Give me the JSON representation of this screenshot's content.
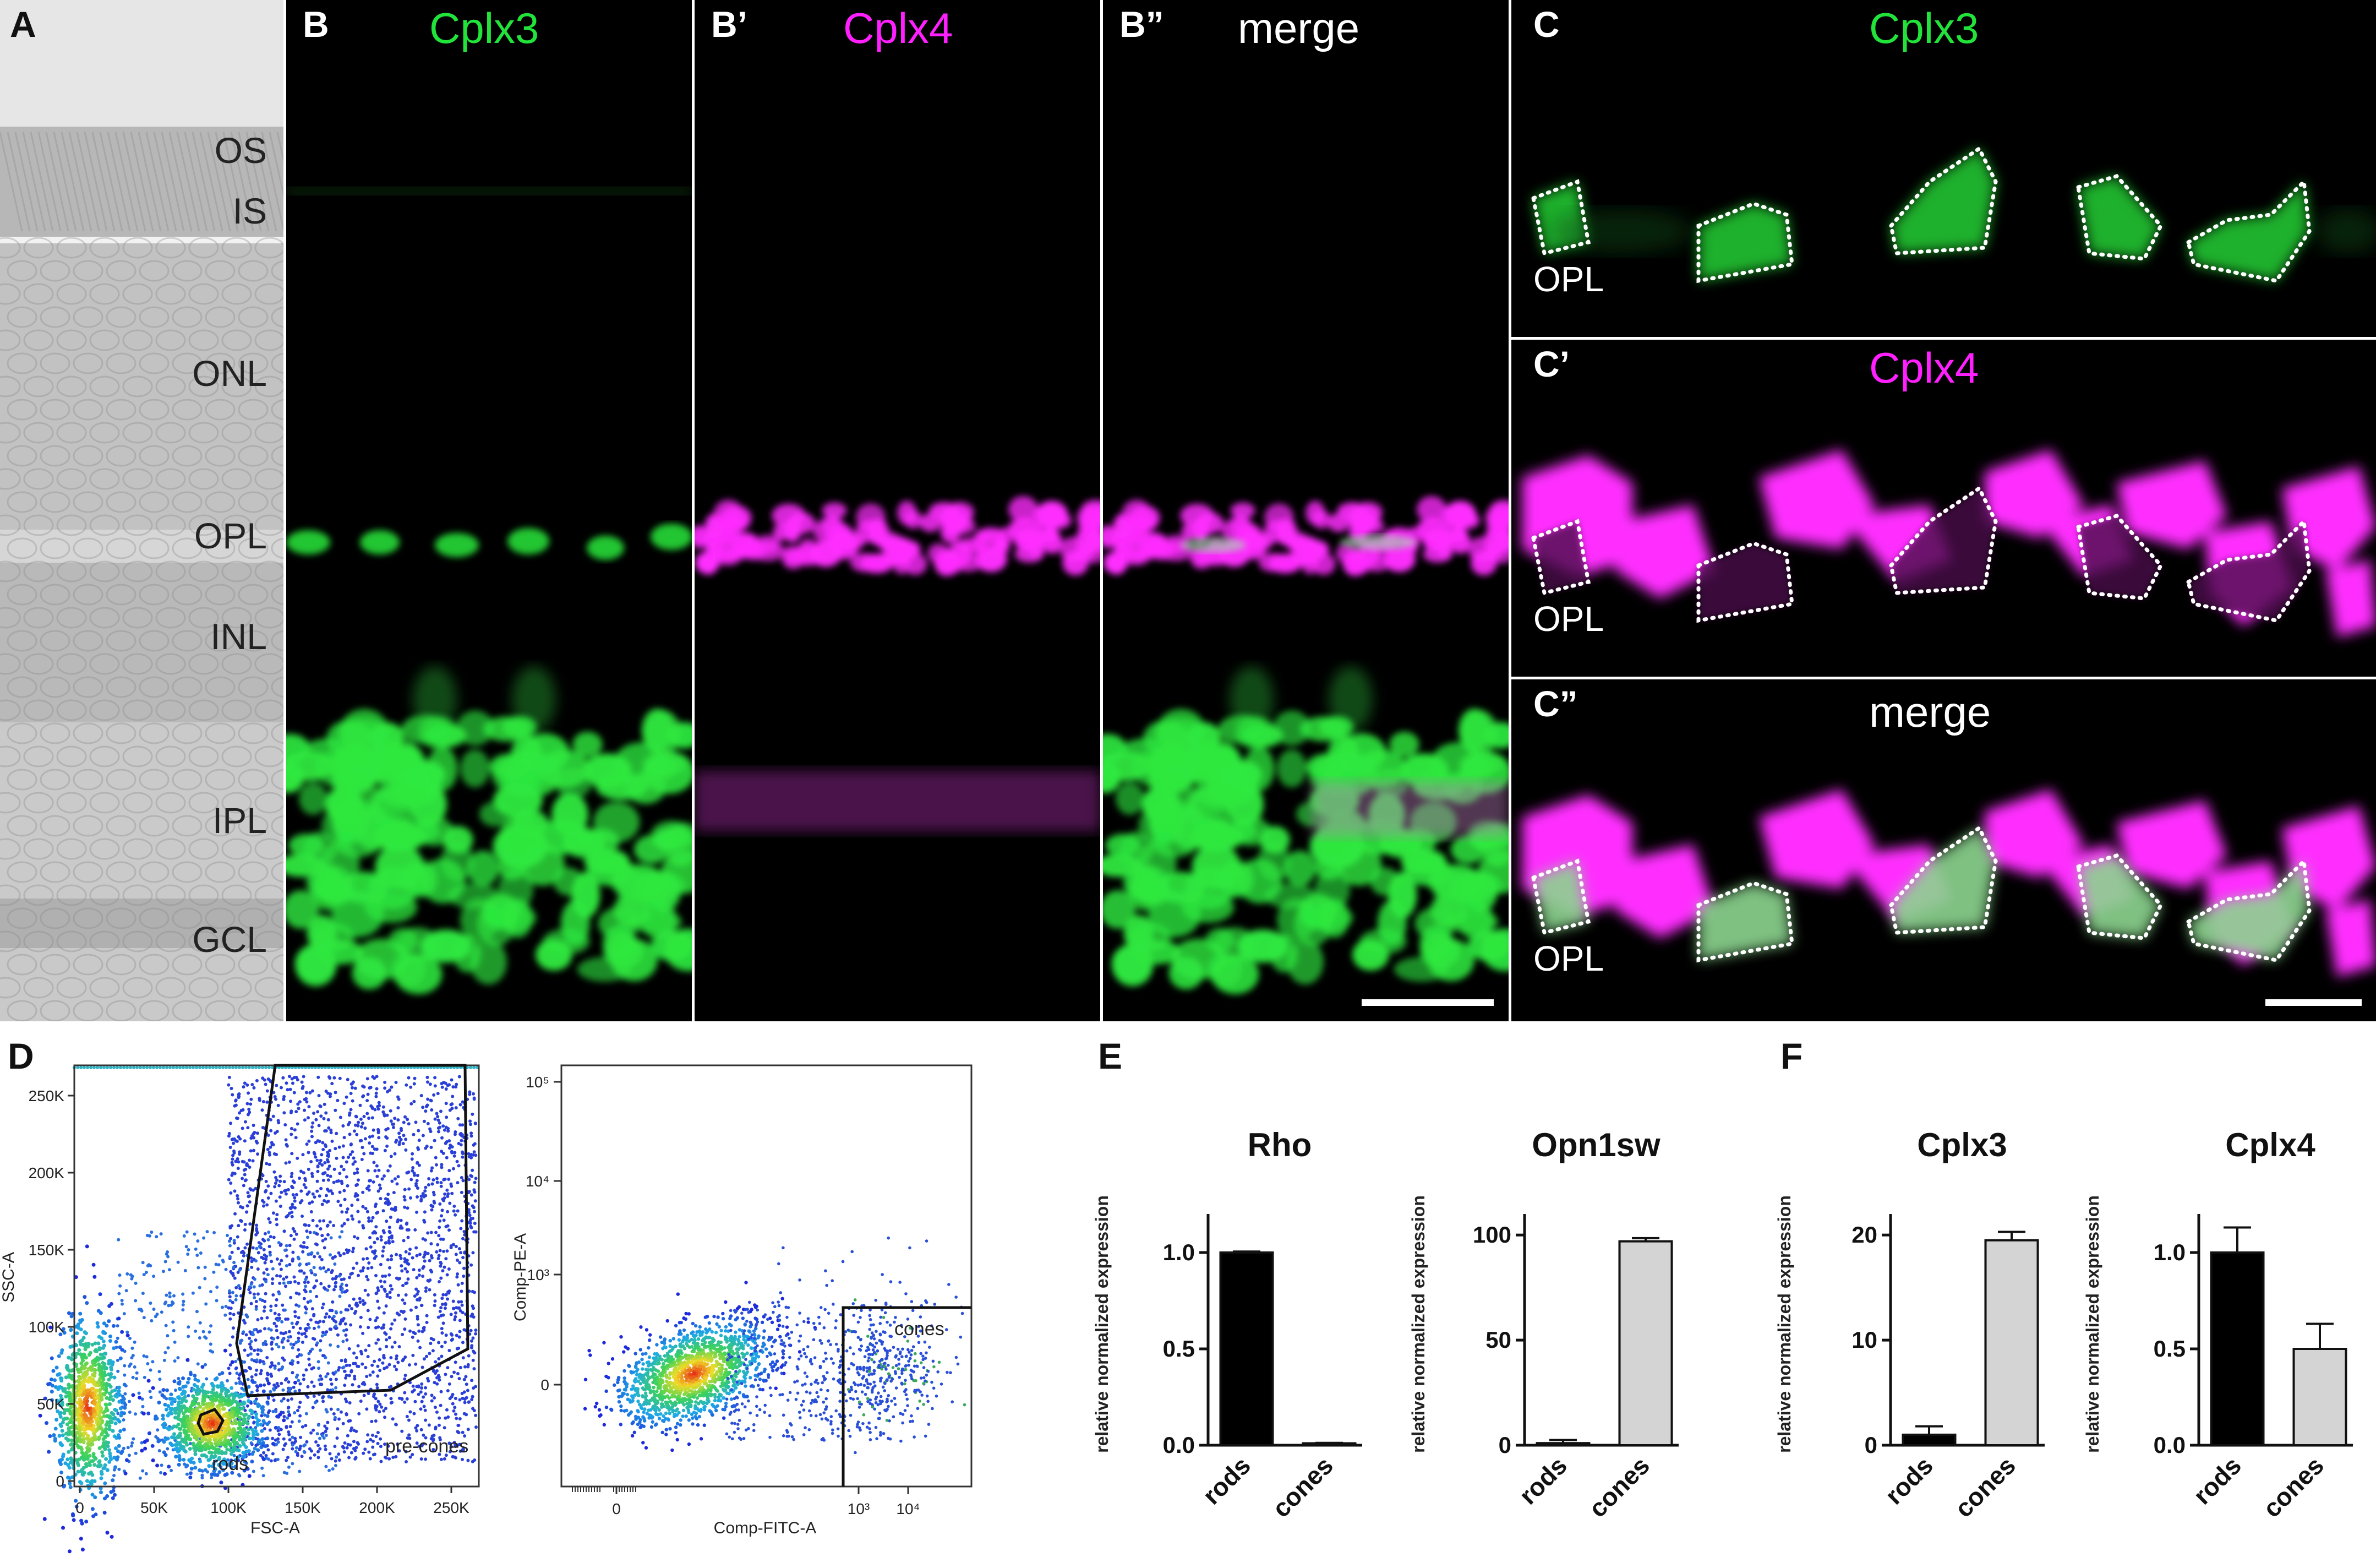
{
  "panels": {
    "A": {
      "label": "A",
      "layers": [
        "OS",
        "IS",
        "ONL",
        "OPL",
        "INL",
        "IPL",
        "GCL"
      ]
    },
    "B": {
      "label": "B",
      "channel": "Cplx3"
    },
    "B1": {
      "label": "B’",
      "channel": "Cplx4"
    },
    "B2": {
      "label": "B”",
      "channel": "merge"
    },
    "C": {
      "label": "C",
      "channel": "Cplx3",
      "region": "OPL"
    },
    "C1": {
      "label": "C’",
      "channel": "Cplx4",
      "region": "OPL"
    },
    "C2": {
      "label": "C”",
      "channel": "merge",
      "region": "OPL"
    },
    "D": {
      "label": "D"
    },
    "E": {
      "label": "E"
    },
    "F": {
      "label": "F"
    }
  },
  "colors": {
    "green": "#22e33a",
    "magenta": "#ff1fff",
    "black": "#000000",
    "grey": "#d4d4d4"
  },
  "facs": {
    "plot1": {
      "xlabel": "FSC-A",
      "ylabel": "SSC-A",
      "xticks": [
        "0",
        "50K",
        "100K",
        "150K",
        "200K",
        "250K"
      ],
      "yticks": [
        "0",
        "50K",
        "100K",
        "150K",
        "200K",
        "250K"
      ],
      "gates": [
        "rods",
        "pre-cones"
      ]
    },
    "plot2": {
      "xlabel": "Comp-FITC-A",
      "ylabel": "Comp-PE-A",
      "xticks": [
        "0",
        "10³",
        "10⁴"
      ],
      "yticks": [
        "0",
        "10³",
        "10⁴",
        "10⁵"
      ],
      "gates": [
        "cones"
      ]
    }
  },
  "chart_data": [
    {
      "panel": "E",
      "type": "bar",
      "title": "Rho",
      "ylabel": "relative normalized expression",
      "categories": [
        "rods",
        "cones"
      ],
      "values": [
        1.0,
        0.01
      ],
      "errors": [
        0.005,
        0.002
      ],
      "ylim": [
        0,
        1.2
      ],
      "yticks": [
        "0.0",
        "0.5",
        "1.0"
      ],
      "ytick_values": [
        0,
        0.5,
        1.0
      ],
      "colors": [
        "#000000",
        "#d4d4d4"
      ]
    },
    {
      "panel": "E",
      "type": "bar",
      "title": "Opn1sw",
      "ylabel": "relative normalized expression",
      "categories": [
        "rods",
        "cones"
      ],
      "values": [
        1,
        97
      ],
      "errors": [
        1.5,
        1.5
      ],
      "ylim": [
        0,
        110
      ],
      "yticks": [
        "0",
        "50",
        "100"
      ],
      "ytick_values": [
        0,
        50,
        100
      ],
      "colors": [
        "#000000",
        "#d4d4d4"
      ]
    },
    {
      "panel": "F",
      "type": "bar",
      "title": "Cplx3",
      "ylabel": "relative normalized expression",
      "categories": [
        "rods",
        "cones"
      ],
      "values": [
        1,
        19.5
      ],
      "errors": [
        0.8,
        0.8
      ],
      "ylim": [
        0,
        22
      ],
      "yticks": [
        "0",
        "10",
        "20"
      ],
      "ytick_values": [
        0,
        10,
        20
      ],
      "colors": [
        "#000000",
        "#d4d4d4"
      ]
    },
    {
      "panel": "F",
      "type": "bar",
      "title": "Cplx4",
      "ylabel": "relative normalized expression",
      "categories": [
        "rods",
        "cones"
      ],
      "values": [
        1.0,
        0.5
      ],
      "errors": [
        0.13,
        0.13
      ],
      "ylim": [
        0,
        1.2
      ],
      "yticks": [
        "0.0",
        "0.5",
        "1.0"
      ],
      "ytick_values": [
        0,
        0.5,
        1.0
      ],
      "colors": [
        "#000000",
        "#d4d4d4"
      ]
    }
  ]
}
